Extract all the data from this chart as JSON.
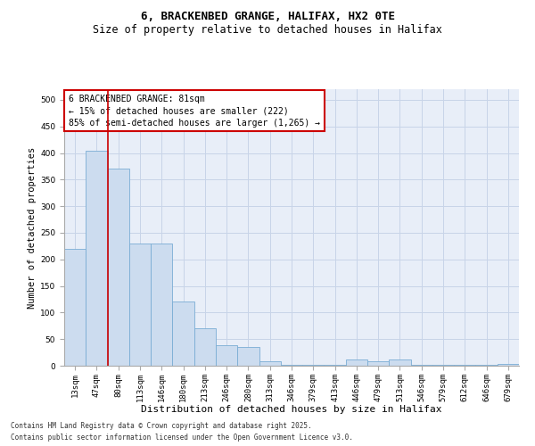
{
  "title1": "6, BRACKENBED GRANGE, HALIFAX, HX2 0TE",
  "title2": "Size of property relative to detached houses in Halifax",
  "xlabel": "Distribution of detached houses by size in Halifax",
  "ylabel": "Number of detached properties",
  "categories": [
    "13sqm",
    "47sqm",
    "80sqm",
    "113sqm",
    "146sqm",
    "180sqm",
    "213sqm",
    "246sqm",
    "280sqm",
    "313sqm",
    "346sqm",
    "379sqm",
    "413sqm",
    "446sqm",
    "479sqm",
    "513sqm",
    "546sqm",
    "579sqm",
    "612sqm",
    "646sqm",
    "679sqm"
  ],
  "values": [
    220,
    405,
    370,
    230,
    230,
    120,
    70,
    38,
    35,
    8,
    2,
    2,
    2,
    12,
    8,
    12,
    2,
    2,
    2,
    2,
    4
  ],
  "bar_color": "#ccdcef",
  "bar_edge_color": "#7aadd4",
  "vline_color": "#cc0000",
  "vline_x": 2.0,
  "annotation_text": "6 BRACKENBED GRANGE: 81sqm\n← 15% of detached houses are smaller (222)\n85% of semi-detached houses are larger (1,265) →",
  "annotation_box_color": "#cc0000",
  "annotation_fill": "#ffffff",
  "ylim": [
    0,
    520
  ],
  "yticks": [
    0,
    50,
    100,
    150,
    200,
    250,
    300,
    350,
    400,
    450,
    500
  ],
  "grid_color": "#c8d4e8",
  "background_color": "#e8eef8",
  "footer1": "Contains HM Land Registry data © Crown copyright and database right 2025.",
  "footer2": "Contains public sector information licensed under the Open Government Licence v3.0.",
  "title_fontsize": 9,
  "subtitle_fontsize": 8.5,
  "tick_fontsize": 6.5,
  "xlabel_fontsize": 8,
  "ylabel_fontsize": 7.5,
  "annotation_fontsize": 7,
  "footer_fontsize": 5.5
}
